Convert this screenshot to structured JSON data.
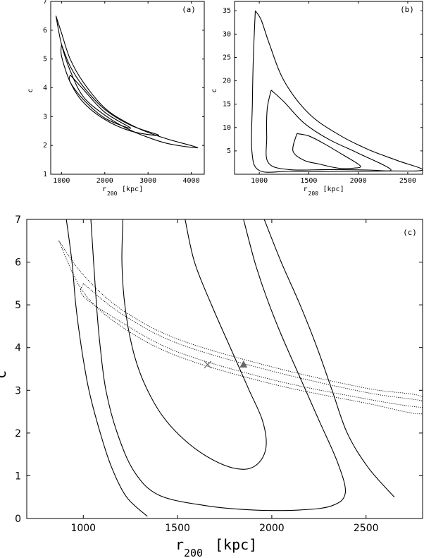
{
  "chart_data": [
    {
      "panel": "(a)",
      "type": "contour",
      "xlabel": "r",
      "xlabel_sub": "200",
      "xlabel_unit": "[kpc]",
      "ylabel": "c",
      "xlim": [
        750,
        4300
      ],
      "ylim": [
        1,
        7
      ],
      "xticks": [
        1000,
        2000,
        3000,
        4000
      ],
      "yticks": [
        1,
        2,
        3,
        4,
        5,
        6,
        7
      ],
      "contours": [
        {
          "level": "outer",
          "style": "solid",
          "points": [
            [
              870,
              6.5
            ],
            [
              1000,
              5.9
            ],
            [
              1200,
              5.0
            ],
            [
              1500,
              4.2
            ],
            [
              2000,
              3.3
            ],
            [
              2500,
              2.8
            ],
            [
              3000,
              2.45
            ],
            [
              3500,
              2.2
            ],
            [
              4150,
              1.92
            ],
            [
              3500,
              2.05
            ],
            [
              3000,
              2.28
            ],
            [
              2500,
              2.6
            ],
            [
              2000,
              3.05
            ],
            [
              1500,
              3.7
            ],
            [
              1200,
              4.6
            ],
            [
              1000,
              5.5
            ],
            [
              870,
              6.5
            ]
          ]
        },
        {
          "level": "middle",
          "style": "solid",
          "points": [
            [
              1000,
              5.5
            ],
            [
              1200,
              4.75
            ],
            [
              1500,
              4.05
            ],
            [
              2000,
              3.25
            ],
            [
              2600,
              2.7
            ],
            [
              3250,
              2.35
            ],
            [
              2600,
              2.5
            ],
            [
              2000,
              2.9
            ],
            [
              1500,
              3.5
            ],
            [
              1200,
              4.2
            ],
            [
              1000,
              5.1
            ],
            [
              1000,
              5.5
            ]
          ]
        },
        {
          "level": "inner",
          "style": "solid",
          "points": [
            [
              1200,
              4.45
            ],
            [
              1500,
              3.95
            ],
            [
              2000,
              3.15
            ],
            [
              2600,
              2.6
            ],
            [
              2000,
              2.95
            ],
            [
              1500,
              3.6
            ],
            [
              1200,
              4.2
            ],
            [
              1200,
              4.45
            ]
          ]
        }
      ]
    },
    {
      "panel": "(b)",
      "type": "contour",
      "xlabel": "r",
      "xlabel_sub": "200",
      "xlabel_unit": "[kpc]",
      "ylabel": "c",
      "xlim": [
        750,
        2650
      ],
      "ylim": [
        0,
        37
      ],
      "xticks": [
        1000,
        1500,
        2000,
        2500
      ],
      "yticks": [
        5,
        10,
        15,
        20,
        25,
        30,
        35
      ],
      "contours": [
        {
          "level": "outer",
          "style": "solid",
          "points": [
            [
              960,
              35
            ],
            [
              1020,
              33
            ],
            [
              1100,
              28
            ],
            [
              1250,
              20
            ],
            [
              1500,
              13
            ],
            [
              1800,
              8.5
            ],
            [
              2100,
              5.3
            ],
            [
              2400,
              2.9
            ],
            [
              2650,
              0.9
            ],
            [
              2300,
              0.7
            ],
            [
              1800,
              0.6
            ],
            [
              1300,
              0.6
            ],
            [
              1000,
              0.8
            ],
            [
              925,
              5
            ],
            [
              930,
              15
            ],
            [
              940,
              25
            ],
            [
              960,
              35
            ]
          ]
        },
        {
          "level": "middle",
          "style": "solid",
          "points": [
            [
              1120,
              18
            ],
            [
              1250,
              15.5
            ],
            [
              1450,
              11
            ],
            [
              1700,
              7.5
            ],
            [
              2000,
              4.5
            ],
            [
              2330,
              1.0
            ],
            [
              2100,
              0.9
            ],
            [
              1700,
              1.0
            ],
            [
              1300,
              1.0
            ],
            [
              1090,
              2.5
            ],
            [
              1075,
              8
            ],
            [
              1080,
              14
            ],
            [
              1120,
              18
            ]
          ]
        },
        {
          "level": "inner",
          "style": "solid",
          "points": [
            [
              1380,
              8.7
            ],
            [
              1500,
              8.2
            ],
            [
              1650,
              6.6
            ],
            [
              1850,
              4.1
            ],
            [
              2020,
              1.8
            ],
            [
              1950,
              1.3
            ],
            [
              1800,
              1.3
            ],
            [
              1600,
              2.2
            ],
            [
              1450,
              3.0
            ],
            [
              1340,
              5
            ],
            [
              1380,
              8.7
            ]
          ]
        }
      ]
    },
    {
      "panel": "(c)",
      "type": "contour",
      "xlabel": "r",
      "xlabel_sub": "200",
      "xlabel_unit": "[kpc]",
      "ylabel": "c",
      "xlim": [
        700,
        2800
      ],
      "ylim": [
        0,
        7
      ],
      "xticks": [
        1000,
        1500,
        2000,
        2500
      ],
      "yticks": [
        0,
        1,
        2,
        3,
        4,
        5,
        6,
        7
      ],
      "contours": [
        {
          "level": "inner",
          "style": "solid",
          "points": [
            [
              1210,
              7
            ],
            [
              1205,
              6
            ],
            [
              1220,
              5.0
            ],
            [
              1260,
              4.0
            ],
            [
              1320,
              3.2
            ],
            [
              1420,
              2.4
            ],
            [
              1560,
              1.75
            ],
            [
              1720,
              1.3
            ],
            [
              1850,
              1.15
            ],
            [
              1930,
              1.3
            ],
            [
              1970,
              1.7
            ],
            [
              1950,
              2.3
            ],
            [
              1880,
              3.0
            ],
            [
              1790,
              3.9
            ],
            [
              1680,
              5.0
            ],
            [
              1590,
              6.0
            ],
            [
              1540,
              7
            ]
          ]
        },
        {
          "level": "middle",
          "style": "solid",
          "points": [
            [
              1040,
              7
            ],
            [
              1070,
              5.0
            ],
            [
              1090,
              4.0
            ],
            [
              1120,
              3.0
            ],
            [
              1180,
              2.0
            ],
            [
              1270,
              1.1
            ],
            [
              1400,
              0.55
            ],
            [
              1650,
              0.3
            ],
            [
              1900,
              0.2
            ],
            [
              2150,
              0.2
            ],
            [
              2320,
              0.3
            ],
            [
              2390,
              0.6
            ],
            [
              2350,
              1.3
            ],
            [
              2250,
              2.3
            ],
            [
              2160,
              3.2
            ],
            [
              2050,
              4.3
            ],
            [
              1970,
              5.2
            ],
            [
              1910,
              6.0
            ],
            [
              1850,
              7
            ]
          ]
        },
        {
          "level": "outer",
          "style": "solid",
          "points": [
            [
              910,
              7
            ],
            [
              940,
              6.0
            ],
            [
              960,
              5.0
            ],
            [
              990,
              4.0
            ],
            [
              1030,
              3.0
            ],
            [
              1090,
              2.0
            ],
            [
              1150,
              1.2
            ],
            [
              1230,
              0.5
            ],
            [
              1340,
              0.05
            ]
          ]
        },
        {
          "level": "outer",
          "style": "solid",
          "points": [
            [
              1960,
              7
            ],
            [
              2050,
              6.0
            ],
            [
              2150,
              5.0
            ],
            [
              2240,
              4.0
            ],
            [
              2320,
              3.0
            ],
            [
              2400,
              2.0
            ],
            [
              2510,
              1.2
            ],
            [
              2650,
              0.5
            ]
          ]
        },
        {
          "level": "dotted-outer",
          "style": "dotted",
          "points": [
            [
              870,
              6.5
            ],
            [
              1000,
              5.7
            ],
            [
              1200,
              4.9
            ],
            [
              1500,
              4.2
            ],
            [
              2000,
              3.55
            ],
            [
              2500,
              3.05
            ],
            [
              2800,
              2.85
            ],
            [
              2800,
              2.45
            ],
            [
              2500,
              2.7
            ],
            [
              2000,
              3.15
            ],
            [
              1500,
              3.8
            ],
            [
              1200,
              4.5
            ],
            [
              1000,
              5.3
            ],
            [
              870,
              6.5
            ]
          ]
        },
        {
          "level": "dotted-inner",
          "style": "dotted",
          "points": [
            [
              1000,
              5.5
            ],
            [
              1200,
              4.8
            ],
            [
              1500,
              4.1
            ],
            [
              2000,
              3.45
            ],
            [
              2500,
              2.95
            ],
            [
              2800,
              2.75
            ],
            [
              2800,
              2.6
            ],
            [
              2500,
              2.8
            ],
            [
              2000,
              3.25
            ],
            [
              1500,
              3.9
            ],
            [
              1200,
              4.6
            ],
            [
              1000,
              5.2
            ],
            [
              1000,
              5.5
            ]
          ]
        }
      ],
      "markers": [
        {
          "symbol": "cross",
          "x": 1660,
          "y": 3.6,
          "color": "#666666"
        },
        {
          "symbol": "triangle",
          "x": 1850,
          "y": 3.6,
          "color": "#666666"
        }
      ]
    }
  ]
}
